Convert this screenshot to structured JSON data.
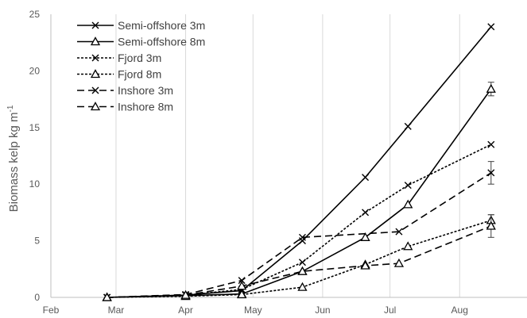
{
  "chart_data": {
    "type": "line",
    "title": "",
    "xlabel": "",
    "ylabel": "Biomass kelp kg m",
    "ylabel_superscript": "-1",
    "x_ticks": [
      "Feb",
      "Mar",
      "Apr",
      "May",
      "Jun",
      "Jul",
      "Aug"
    ],
    "xlim": [
      "2016-02-01",
      "2016-08-31"
    ],
    "ylim": [
      0,
      25
    ],
    "y_ticks": [
      0,
      5,
      10,
      15,
      20,
      25
    ],
    "grid": "vertical",
    "legend_position": "top-left",
    "series": [
      {
        "name": "Semi-offshore 3m",
        "marker": "cross",
        "dash": "solid",
        "points": [
          {
            "x": "2016-02-26",
            "y": 0.0
          },
          {
            "x": "2016-04-01",
            "y": 0.2
          },
          {
            "x": "2016-04-26",
            "y": 0.6
          },
          {
            "x": "2016-05-23",
            "y": 5.0
          },
          {
            "x": "2016-06-20",
            "y": 10.6
          },
          {
            "x": "2016-07-09",
            "y": 15.1
          },
          {
            "x": "2016-08-15",
            "y": 23.9
          }
        ]
      },
      {
        "name": "Semi-offshore 8m",
        "marker": "triangle",
        "dash": "solid",
        "points": [
          {
            "x": "2016-02-26",
            "y": 0.0
          },
          {
            "x": "2016-04-01",
            "y": 0.15
          },
          {
            "x": "2016-04-26",
            "y": 0.3
          },
          {
            "x": "2016-05-23",
            "y": 2.3
          },
          {
            "x": "2016-06-20",
            "y": 5.3
          },
          {
            "x": "2016-07-09",
            "y": 8.2
          },
          {
            "x": "2016-08-15",
            "y": 18.4,
            "err": 0.6
          }
        ]
      },
      {
        "name": "Fjord 3m",
        "marker": "cross",
        "dash": "dotted",
        "points": [
          {
            "x": "2016-02-26",
            "y": 0.0
          },
          {
            "x": "2016-04-01",
            "y": 0.2
          },
          {
            "x": "2016-04-26",
            "y": 0.7
          },
          {
            "x": "2016-05-23",
            "y": 3.1
          },
          {
            "x": "2016-06-20",
            "y": 7.5
          },
          {
            "x": "2016-07-09",
            "y": 9.9
          },
          {
            "x": "2016-08-15",
            "y": 13.5
          }
        ]
      },
      {
        "name": "Fjord 8m",
        "marker": "triangle",
        "dash": "dotted",
        "points": [
          {
            "x": "2016-02-26",
            "y": 0.0
          },
          {
            "x": "2016-04-01",
            "y": 0.1
          },
          {
            "x": "2016-04-26",
            "y": 0.25
          },
          {
            "x": "2016-05-23",
            "y": 0.9
          },
          {
            "x": "2016-06-20",
            "y": 2.9
          },
          {
            "x": "2016-07-09",
            "y": 4.5
          },
          {
            "x": "2016-08-15",
            "y": 6.8,
            "err": 0.5
          }
        ]
      },
      {
        "name": "Inshore 3m",
        "marker": "cross",
        "dash": "dashed",
        "points": [
          {
            "x": "2016-02-26",
            "y": 0.0
          },
          {
            "x": "2016-04-01",
            "y": 0.25
          },
          {
            "x": "2016-04-26",
            "y": 1.5
          },
          {
            "x": "2016-05-23",
            "y": 5.3
          },
          {
            "x": "2016-07-05",
            "y": 5.8
          },
          {
            "x": "2016-08-15",
            "y": 11.0,
            "err": 1.0
          }
        ]
      },
      {
        "name": "Inshore 8m",
        "marker": "triangle",
        "dash": "dashed",
        "points": [
          {
            "x": "2016-02-26",
            "y": 0.0
          },
          {
            "x": "2016-04-01",
            "y": 0.2
          },
          {
            "x": "2016-04-26",
            "y": 1.0
          },
          {
            "x": "2016-05-23",
            "y": 2.3
          },
          {
            "x": "2016-06-20",
            "y": 2.8
          },
          {
            "x": "2016-07-05",
            "y": 3.0
          },
          {
            "x": "2016-08-15",
            "y": 6.3,
            "err": 1.0
          }
        ]
      }
    ]
  }
}
